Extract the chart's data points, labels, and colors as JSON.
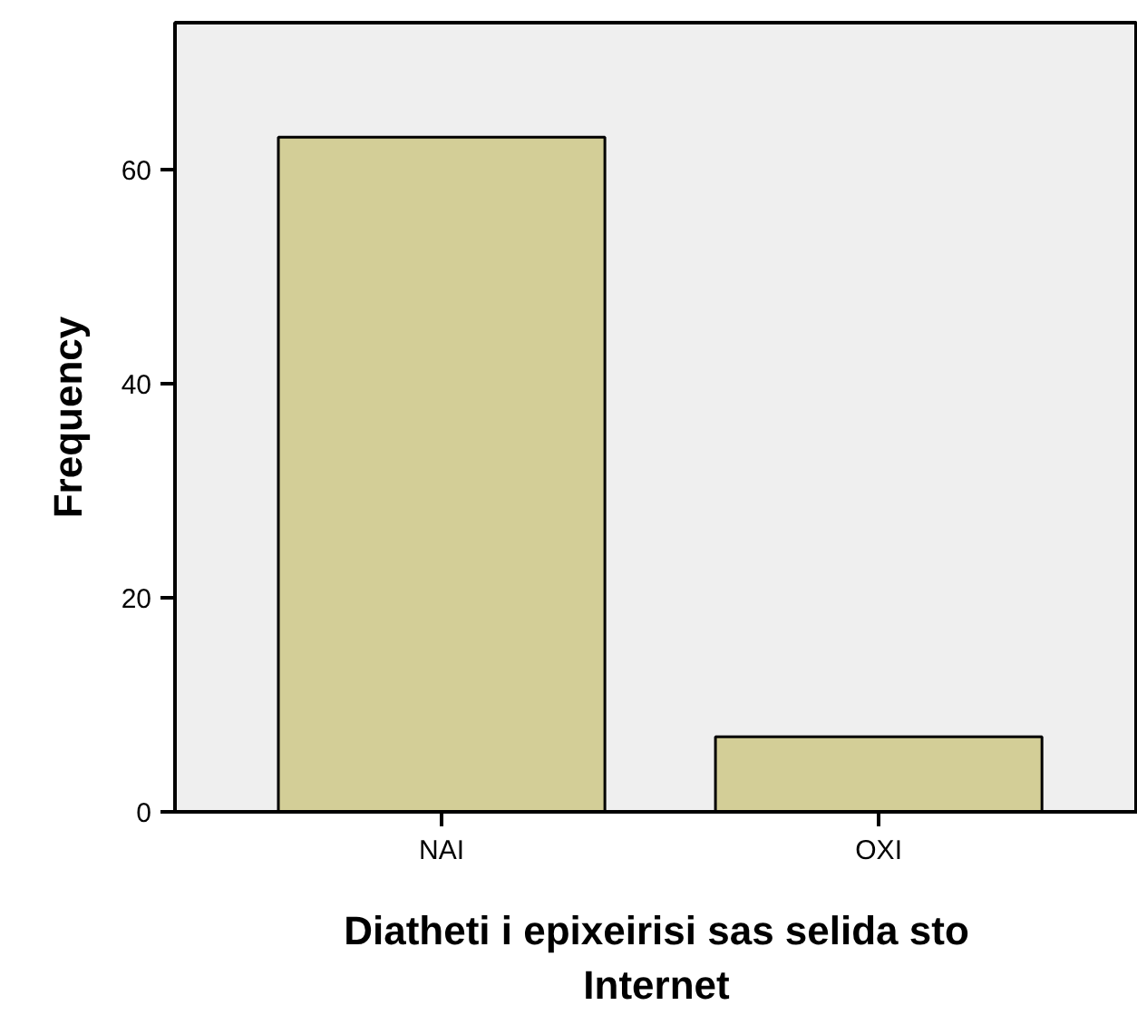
{
  "chart_data": {
    "type": "bar",
    "categories": [
      "NAI",
      "OXI"
    ],
    "values": [
      63,
      7
    ],
    "color": "#d3ce97",
    "xlabel": "Diatheti i epixeirisi sas selida sto Internet",
    "ylabel": "Frequency",
    "ylim": [
      0,
      73.7
    ],
    "yticks": [
      0,
      20,
      40,
      60
    ],
    "grid": false
  }
}
